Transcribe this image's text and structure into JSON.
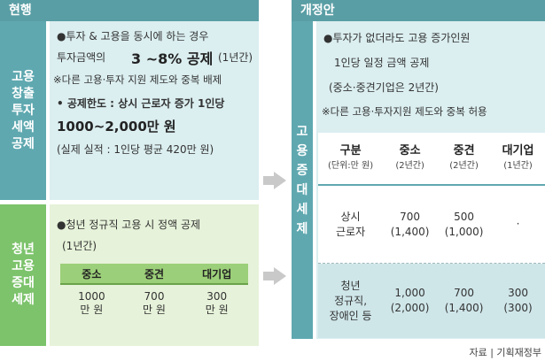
{
  "current": {
    "header": "현행",
    "tax_label": "고용\n창출\n투자\n세액\n공제",
    "tax_lines": [
      "●투자 & 고용을 동시에 하는 경우",
      "  투자금액의",
      "3 ~8% 공제",
      "(1년간)",
      "※다른 고용·투자 지원 제도와 중복 배제",
      "• 공제한도 : 상시 근로자 증가 1인당",
      "1000~2,000만 원",
      "(실제 실적 : 1인당 평균 420만 원)"
    ],
    "youth_label": "청년\n고용\n증대\n세제",
    "youth_lines": [
      "●청년 정규직 고용 시 정액 공제",
      "(1년간)"
    ],
    "youth_table": {
      "headers": [
        "중소",
        "중견",
        "대기업"
      ],
      "values": [
        "1000\n만 원",
        "700\n만 원",
        "300\n만 원"
      ]
    }
  },
  "proposed": {
    "header": "개정안",
    "label": "고\n용\n증\n대\n세\n제",
    "lines": [
      "●투자가 없더라도 고용 증가인원",
      "1인당 일정 금액 공제",
      "(중소·중견기업은 2년간)",
      "※다른 고용·투자지원 제도와 중복 허용"
    ],
    "table": {
      "headers": [
        {
          "t1": "구분",
          "t2": "(단위:만 원)"
        },
        {
          "t1": "중소",
          "t2": "(2년간)"
        },
        {
          "t1": "중견",
          "t2": "(2년간)"
        },
        {
          "t1": "대기업",
          "t2": "(1년간)"
        }
      ],
      "rows": [
        [
          "상시\n근로자",
          "700\n(1,400)",
          "500\n(1,000)",
          "·"
        ],
        [
          "청년\n정규직,\n장애인 등",
          "1,000\n(2,000)",
          "700\n(1,400)",
          "300\n(300)"
        ]
      ]
    }
  },
  "source": "자료 | 기획재정부",
  "colors": {
    "header": "#5a9ea5",
    "teal": "#5fa8b0",
    "green": "#7cc36b",
    "light_teal": "#dbeef0",
    "light_green": "#e6f2d9"
  }
}
